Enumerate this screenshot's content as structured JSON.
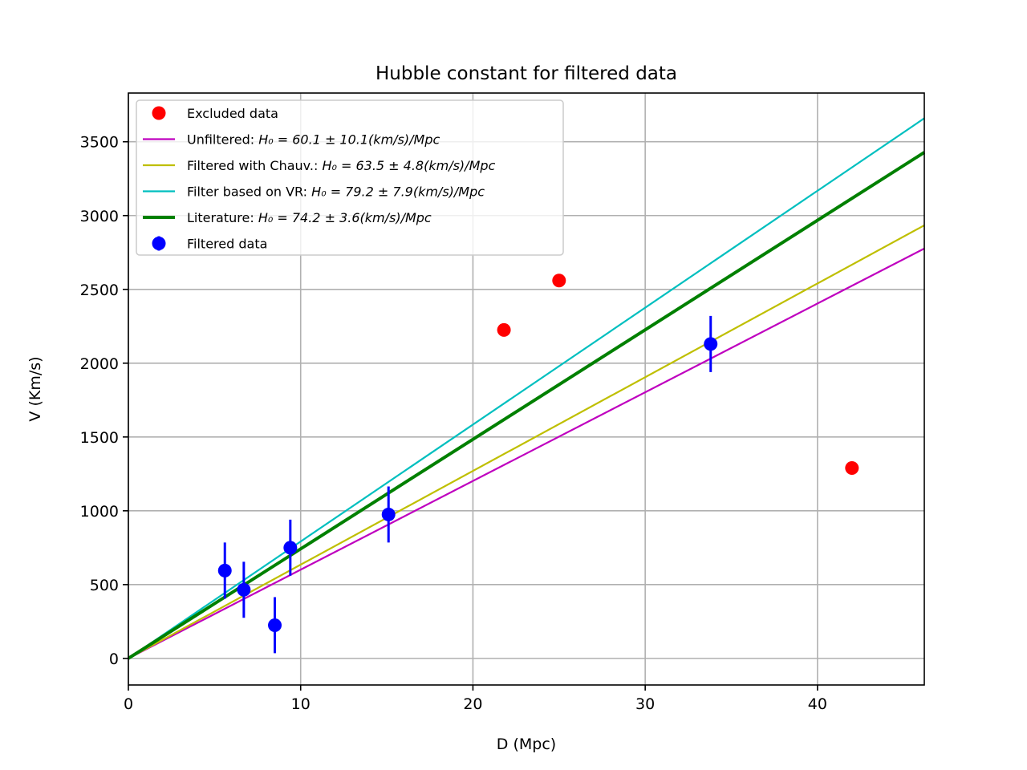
{
  "chart_data": {
    "type": "scatter",
    "title": "Hubble constant for filtered data",
    "xlabel": "D (Mpc)",
    "ylabel": "V (Km/s)",
    "xlim": [
      0,
      46.2
    ],
    "ylim": [
      -180,
      3830
    ],
    "xticks": [
      0,
      10,
      20,
      30,
      40
    ],
    "yticks": [
      0,
      500,
      1000,
      1500,
      2000,
      2500,
      3000,
      3500
    ],
    "grid": true,
    "legend_position": "top-left",
    "lines": [
      {
        "label_text": "Unfiltered: ",
        "label_math": "H₀ = 60.1 ± 10.1(km/s)/Mpc",
        "slope": 60.1,
        "color": "#bf00bf",
        "width": 2.2
      },
      {
        "label_text": "Filtered with Chauv.: ",
        "label_math": "H₀ = 63.5 ± 4.8(km/s)/Mpc",
        "slope": 63.5,
        "color": "#bfbf00",
        "width": 2.2
      },
      {
        "label_text": "Filter based on VR: ",
        "label_math": "H₀ = 79.2 ± 7.9(km/s)/Mpc",
        "slope": 79.2,
        "color": "#00bfbf",
        "width": 2.2
      },
      {
        "label_text": "Literature: ",
        "label_math": "H₀ = 74.2 ± 3.6(km/s)/Mpc",
        "slope": 74.2,
        "color": "#008000",
        "width": 4
      }
    ],
    "excluded": {
      "label": "Excluded data",
      "color": "#ff0000",
      "points": [
        {
          "x": 21.8,
          "y": 2225
        },
        {
          "x": 25.0,
          "y": 2560
        },
        {
          "x": 42.0,
          "y": 1290
        }
      ]
    },
    "filtered": {
      "label": "Filtered data",
      "color": "#0000ff",
      "points": [
        {
          "x": 5.6,
          "y": 595,
          "err": 190
        },
        {
          "x": 6.7,
          "y": 465,
          "err": 190
        },
        {
          "x": 8.5,
          "y": 225,
          "err": 190
        },
        {
          "x": 9.4,
          "y": 750,
          "err": 190
        },
        {
          "x": 15.1,
          "y": 975,
          "err": 190
        },
        {
          "x": 33.8,
          "y": 2130,
          "err": 190
        }
      ]
    }
  }
}
